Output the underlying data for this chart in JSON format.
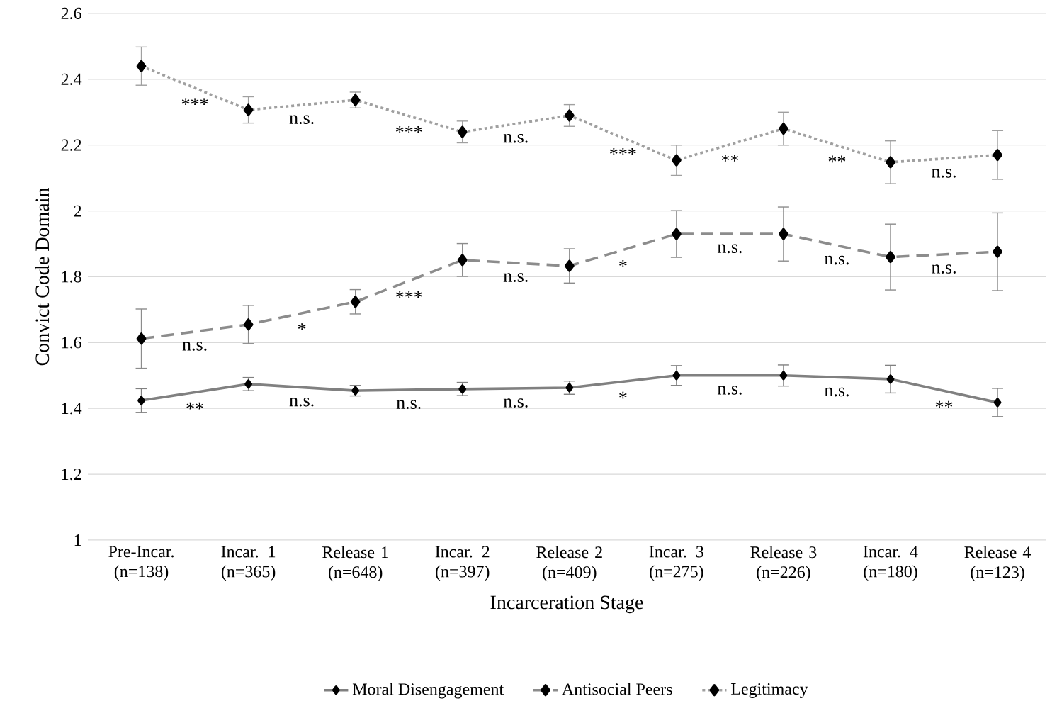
{
  "chart_data": {
    "type": "line",
    "xlabel": "Incarceration Stage",
    "ylabel": "Convict Code Domain",
    "categories": [
      "Pre-Incar. (n=138)",
      "Incar. 1 (n=365)",
      "Release 1 (n=648)",
      "Incar. 2 (n=397)",
      "Release 2 (n=409)",
      "Incar. 3 (n=275)",
      "Release 3 (n=226)",
      "Incar. 4 (n=180)",
      "Release 4 (n=123)"
    ],
    "ylim": [
      1,
      2.6
    ],
    "yticks": [
      1,
      1.2,
      1.4,
      1.6,
      1.8,
      2,
      2.2,
      2.4,
      2.6
    ],
    "grid": "y",
    "legend": "bottom",
    "marker": "diamond",
    "series": [
      {
        "name": "Moral Disengagement",
        "color": "#808080",
        "line_style": "solid",
        "values": [
          1.424,
          1.474,
          1.454,
          1.459,
          1.463,
          1.5,
          1.5,
          1.489,
          1.418
        ],
        "errors": [
          0.036,
          0.02,
          0.016,
          0.02,
          0.02,
          0.03,
          0.032,
          0.042,
          0.043
        ]
      },
      {
        "name": "Antisocial Peers",
        "color": "#8c8c8c",
        "line_style": "dashed",
        "values": [
          1.612,
          1.655,
          1.724,
          1.851,
          1.833,
          1.93,
          1.93,
          1.86,
          1.876
        ],
        "errors": [
          0.09,
          0.058,
          0.037,
          0.05,
          0.052,
          0.071,
          0.082,
          0.1,
          0.118
        ]
      },
      {
        "name": "Legitimacy",
        "color": "#a0a0a0",
        "line_style": "dotted",
        "values": [
          2.44,
          2.307,
          2.337,
          2.24,
          2.29,
          2.154,
          2.25,
          2.148,
          2.17
        ],
        "errors": [
          0.058,
          0.04,
          0.024,
          0.033,
          0.033,
          0.046,
          0.05,
          0.065,
          0.074
        ]
      }
    ],
    "annotations": [
      "**",
      "n.s.",
      "n.s.",
      "n.s.",
      "*",
      "n.s.",
      "n.s.",
      "**",
      "n.s.",
      "*",
      "***",
      "n.s.",
      "*",
      "n.s.",
      "n.s.",
      "n.s.",
      "***",
      "n.s.",
      "***",
      "n.s.",
      "***",
      "**",
      "**",
      "n.s."
    ]
  }
}
